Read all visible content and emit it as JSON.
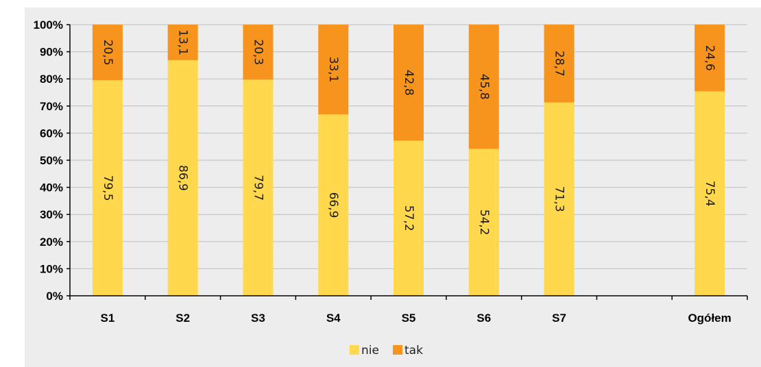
{
  "chart_data": {
    "type": "bar",
    "stacked": true,
    "categories": [
      "S1",
      "S2",
      "S3",
      "S4",
      "S5",
      "S6",
      "S7",
      "",
      "Ogółem"
    ],
    "series": [
      {
        "name": "nie",
        "color": "#FFD84E",
        "values": [
          79.5,
          86.9,
          79.7,
          66.9,
          57.2,
          54.2,
          71.3,
          null,
          75.4
        ]
      },
      {
        "name": "tak",
        "color": "#F7941D",
        "values": [
          20.5,
          13.1,
          20.3,
          33.1,
          42.8,
          45.8,
          28.7,
          null,
          24.6
        ]
      }
    ],
    "data_labels": {
      "nie": [
        "79,5",
        "86,9",
        "79,7",
        "66,9",
        "57,2",
        "54,2",
        "71,3",
        "",
        "75,4"
      ],
      "tak": [
        "20,5",
        "13,1",
        "20,3",
        "33,1",
        "42,8",
        "45,8",
        "28,7",
        "",
        "24,6"
      ]
    },
    "yticks": [
      "0%",
      "10%",
      "20%",
      "30%",
      "40%",
      "50%",
      "60%",
      "70%",
      "80%",
      "90%",
      "100%"
    ],
    "ylim": [
      0,
      100
    ],
    "grid": true,
    "legend_position": "bottom",
    "background": "#EDEDED",
    "title": "",
    "xlabel": "",
    "ylabel": ""
  }
}
